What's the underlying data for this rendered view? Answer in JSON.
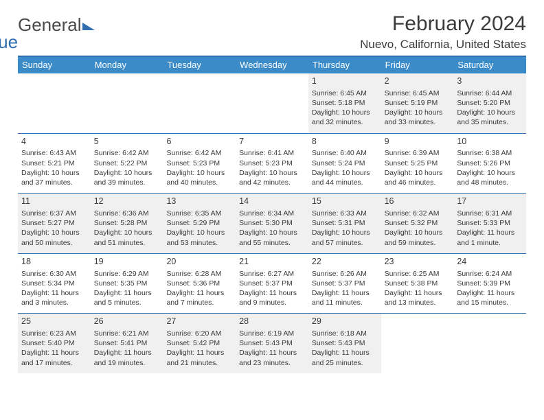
{
  "logo": {
    "word1": "General",
    "word2": "Blue"
  },
  "title": "February 2024",
  "location": "Nuevo, California, United States",
  "colors": {
    "header_bar": "#3b8bc9",
    "rule": "#2f6fb0",
    "shade": "#f0f0f0",
    "text": "#3a3a3a",
    "logo_blue": "#2f6fb0"
  },
  "day_names": [
    "Sunday",
    "Monday",
    "Tuesday",
    "Wednesday",
    "Thursday",
    "Friday",
    "Saturday"
  ],
  "weeks": [
    [
      {
        "n": "",
        "sr": "",
        "ss": "",
        "dl": ""
      },
      {
        "n": "",
        "sr": "",
        "ss": "",
        "dl": ""
      },
      {
        "n": "",
        "sr": "",
        "ss": "",
        "dl": ""
      },
      {
        "n": "",
        "sr": "",
        "ss": "",
        "dl": ""
      },
      {
        "n": "1",
        "sr": "Sunrise: 6:45 AM",
        "ss": "Sunset: 5:18 PM",
        "dl": "Daylight: 10 hours and 32 minutes."
      },
      {
        "n": "2",
        "sr": "Sunrise: 6:45 AM",
        "ss": "Sunset: 5:19 PM",
        "dl": "Daylight: 10 hours and 33 minutes."
      },
      {
        "n": "3",
        "sr": "Sunrise: 6:44 AM",
        "ss": "Sunset: 5:20 PM",
        "dl": "Daylight: 10 hours and 35 minutes."
      }
    ],
    [
      {
        "n": "4",
        "sr": "Sunrise: 6:43 AM",
        "ss": "Sunset: 5:21 PM",
        "dl": "Daylight: 10 hours and 37 minutes."
      },
      {
        "n": "5",
        "sr": "Sunrise: 6:42 AM",
        "ss": "Sunset: 5:22 PM",
        "dl": "Daylight: 10 hours and 39 minutes."
      },
      {
        "n": "6",
        "sr": "Sunrise: 6:42 AM",
        "ss": "Sunset: 5:23 PM",
        "dl": "Daylight: 10 hours and 40 minutes."
      },
      {
        "n": "7",
        "sr": "Sunrise: 6:41 AM",
        "ss": "Sunset: 5:23 PM",
        "dl": "Daylight: 10 hours and 42 minutes."
      },
      {
        "n": "8",
        "sr": "Sunrise: 6:40 AM",
        "ss": "Sunset: 5:24 PM",
        "dl": "Daylight: 10 hours and 44 minutes."
      },
      {
        "n": "9",
        "sr": "Sunrise: 6:39 AM",
        "ss": "Sunset: 5:25 PM",
        "dl": "Daylight: 10 hours and 46 minutes."
      },
      {
        "n": "10",
        "sr": "Sunrise: 6:38 AM",
        "ss": "Sunset: 5:26 PM",
        "dl": "Daylight: 10 hours and 48 minutes."
      }
    ],
    [
      {
        "n": "11",
        "sr": "Sunrise: 6:37 AM",
        "ss": "Sunset: 5:27 PM",
        "dl": "Daylight: 10 hours and 50 minutes."
      },
      {
        "n": "12",
        "sr": "Sunrise: 6:36 AM",
        "ss": "Sunset: 5:28 PM",
        "dl": "Daylight: 10 hours and 51 minutes."
      },
      {
        "n": "13",
        "sr": "Sunrise: 6:35 AM",
        "ss": "Sunset: 5:29 PM",
        "dl": "Daylight: 10 hours and 53 minutes."
      },
      {
        "n": "14",
        "sr": "Sunrise: 6:34 AM",
        "ss": "Sunset: 5:30 PM",
        "dl": "Daylight: 10 hours and 55 minutes."
      },
      {
        "n": "15",
        "sr": "Sunrise: 6:33 AM",
        "ss": "Sunset: 5:31 PM",
        "dl": "Daylight: 10 hours and 57 minutes."
      },
      {
        "n": "16",
        "sr": "Sunrise: 6:32 AM",
        "ss": "Sunset: 5:32 PM",
        "dl": "Daylight: 10 hours and 59 minutes."
      },
      {
        "n": "17",
        "sr": "Sunrise: 6:31 AM",
        "ss": "Sunset: 5:33 PM",
        "dl": "Daylight: 11 hours and 1 minute."
      }
    ],
    [
      {
        "n": "18",
        "sr": "Sunrise: 6:30 AM",
        "ss": "Sunset: 5:34 PM",
        "dl": "Daylight: 11 hours and 3 minutes."
      },
      {
        "n": "19",
        "sr": "Sunrise: 6:29 AM",
        "ss": "Sunset: 5:35 PM",
        "dl": "Daylight: 11 hours and 5 minutes."
      },
      {
        "n": "20",
        "sr": "Sunrise: 6:28 AM",
        "ss": "Sunset: 5:36 PM",
        "dl": "Daylight: 11 hours and 7 minutes."
      },
      {
        "n": "21",
        "sr": "Sunrise: 6:27 AM",
        "ss": "Sunset: 5:37 PM",
        "dl": "Daylight: 11 hours and 9 minutes."
      },
      {
        "n": "22",
        "sr": "Sunrise: 6:26 AM",
        "ss": "Sunset: 5:37 PM",
        "dl": "Daylight: 11 hours and 11 minutes."
      },
      {
        "n": "23",
        "sr": "Sunrise: 6:25 AM",
        "ss": "Sunset: 5:38 PM",
        "dl": "Daylight: 11 hours and 13 minutes."
      },
      {
        "n": "24",
        "sr": "Sunrise: 6:24 AM",
        "ss": "Sunset: 5:39 PM",
        "dl": "Daylight: 11 hours and 15 minutes."
      }
    ],
    [
      {
        "n": "25",
        "sr": "Sunrise: 6:23 AM",
        "ss": "Sunset: 5:40 PM",
        "dl": "Daylight: 11 hours and 17 minutes."
      },
      {
        "n": "26",
        "sr": "Sunrise: 6:21 AM",
        "ss": "Sunset: 5:41 PM",
        "dl": "Daylight: 11 hours and 19 minutes."
      },
      {
        "n": "27",
        "sr": "Sunrise: 6:20 AM",
        "ss": "Sunset: 5:42 PM",
        "dl": "Daylight: 11 hours and 21 minutes."
      },
      {
        "n": "28",
        "sr": "Sunrise: 6:19 AM",
        "ss": "Sunset: 5:43 PM",
        "dl": "Daylight: 11 hours and 23 minutes."
      },
      {
        "n": "29",
        "sr": "Sunrise: 6:18 AM",
        "ss": "Sunset: 5:43 PM",
        "dl": "Daylight: 11 hours and 25 minutes."
      },
      {
        "n": "",
        "sr": "",
        "ss": "",
        "dl": ""
      },
      {
        "n": "",
        "sr": "",
        "ss": "",
        "dl": ""
      }
    ]
  ]
}
